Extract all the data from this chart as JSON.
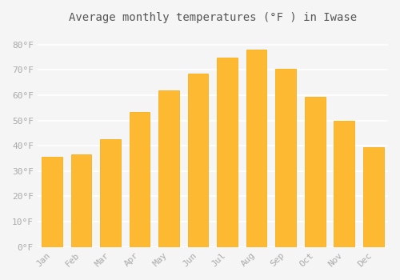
{
  "title": "Average monthly temperatures (°F ) in Iwase",
  "months": [
    "Jan",
    "Feb",
    "Mar",
    "Apr",
    "May",
    "Jun",
    "Jul",
    "Aug",
    "Sep",
    "Oct",
    "Nov",
    "Dec"
  ],
  "values": [
    35.5,
    36.5,
    42.5,
    53.5,
    62.0,
    68.5,
    75.0,
    78.0,
    70.5,
    59.5,
    50.0,
    39.5
  ],
  "bar_color": "#FDB931",
  "bar_edge_color": "#F5A800",
  "background_color": "#F5F5F5",
  "grid_color": "#FFFFFF",
  "tick_label_color": "#AAAAAA",
  "title_color": "#555555",
  "ylim": [
    0,
    85
  ],
  "yticks": [
    0,
    10,
    20,
    30,
    40,
    50,
    60,
    70,
    80
  ],
  "ytick_labels": [
    "0°F",
    "10°F",
    "20°F",
    "30°F",
    "40°F",
    "50°F",
    "60°F",
    "70°F",
    "80°F"
  ]
}
